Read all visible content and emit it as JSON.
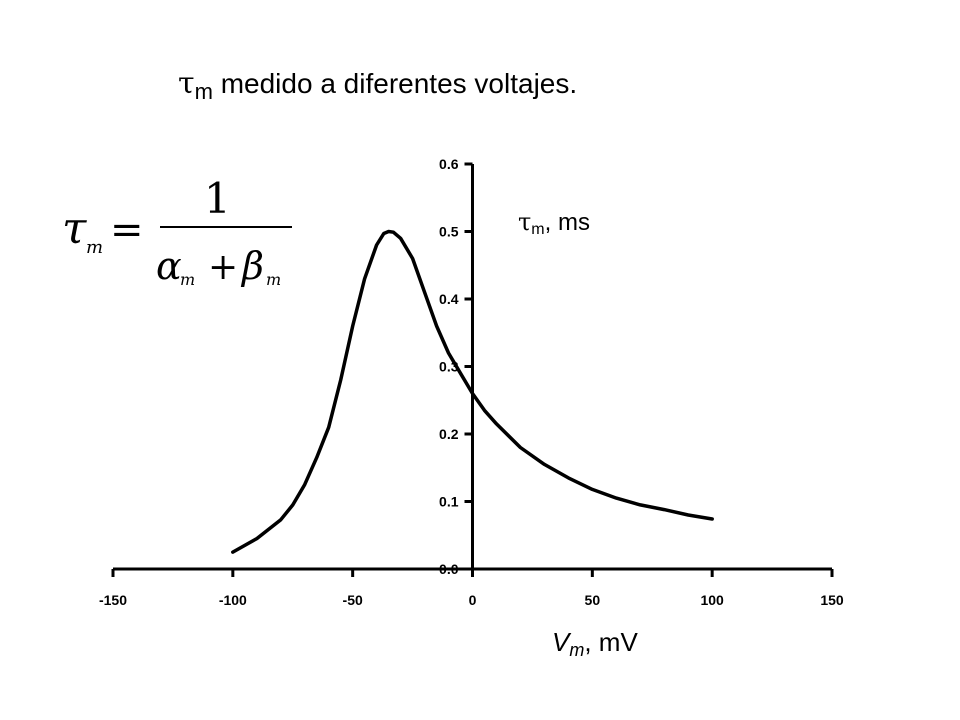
{
  "title": {
    "symbol": "τ",
    "subscript": "m",
    "text": " medido a diferentes voltajes."
  },
  "formula": {
    "lhs_symbol": "τ",
    "lhs_sub": "m",
    "equals": "=",
    "numerator": "1",
    "alpha": "α",
    "alpha_sub": "m",
    "plus": "+",
    "beta": "β",
    "beta_sub": "m"
  },
  "chart_data": {
    "type": "line",
    "title": "τm medido a diferentes voltajes.",
    "xlabel": "Vm, mV",
    "ylabel": "τm, ms",
    "xlim": [
      -150,
      150
    ],
    "ylim": [
      0,
      0.6
    ],
    "x_ticks": [
      -150,
      -100,
      -50,
      0,
      50,
      100,
      150
    ],
    "x_tick_labels": [
      "-150",
      "-100",
      "-50",
      "0",
      "50",
      "100",
      "150"
    ],
    "y_ticks": [
      0,
      0.1,
      0.2,
      0.3,
      0.4,
      0.5,
      0.6
    ],
    "y_tick_labels": [
      "0.0",
      "0.1",
      "0.2",
      "0.3",
      "0.4",
      "0.5",
      "0.6"
    ],
    "grid": false,
    "series": [
      {
        "x": [
          -100,
          -90,
          -80,
          -75,
          -70,
          -65,
          -60,
          -55,
          -50,
          -45,
          -40,
          -37,
          -35,
          -33,
          -30,
          -25,
          -20,
          -15,
          -10,
          -5,
          0,
          5,
          10,
          20,
          30,
          40,
          50,
          60,
          70,
          80,
          90,
          100
        ],
        "y": [
          0.025,
          0.045,
          0.073,
          0.095,
          0.125,
          0.165,
          0.21,
          0.28,
          0.36,
          0.43,
          0.48,
          0.497,
          0.5,
          0.499,
          0.49,
          0.46,
          0.41,
          0.36,
          0.32,
          0.29,
          0.26,
          0.235,
          0.215,
          0.18,
          0.155,
          0.135,
          0.118,
          0.105,
          0.095,
          0.088,
          0.08,
          0.074
        ]
      }
    ]
  },
  "ylabel_display": {
    "symbol": "τ",
    "subscript": "m",
    "text": ", ms"
  },
  "xlabel_display": {
    "symbol": "V",
    "subscript": "m",
    "text": ", mV"
  }
}
